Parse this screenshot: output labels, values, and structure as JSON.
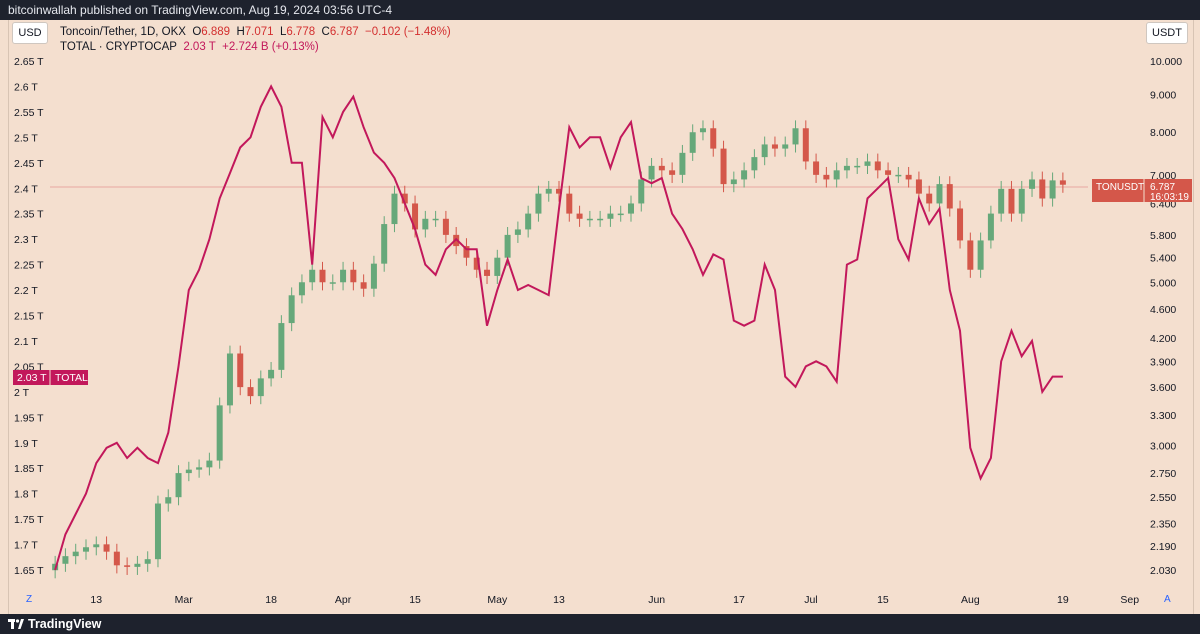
{
  "header": {
    "publish_line": "bitcoinwallah published on TradingView.com, Aug 19, 2024 03:56 UTC-4"
  },
  "footer": {
    "brand": "TradingView",
    "logo_icon": "tradingview-logo-icon"
  },
  "left_axis": {
    "currency_button": "USD",
    "ticks": [
      "2.65 T",
      "2.6 T",
      "2.55 T",
      "2.5 T",
      "2.45 T",
      "2.4 T",
      "2.35 T",
      "2.3 T",
      "2.25 T",
      "2.2 T",
      "2.15 T",
      "2.1 T",
      "2.05 T",
      "2 T",
      "1.95 T",
      "1.9 T",
      "1.85 T",
      "1.8 T",
      "1.75 T",
      "1.7 T",
      "1.65 T"
    ],
    "scale_button": "Z"
  },
  "right_axis": {
    "currency_button": "USDT",
    "ticks": [
      "10.000",
      "9.000",
      "8.000",
      "7.000",
      "6.400",
      "5.800",
      "5.400",
      "5.000",
      "4.600",
      "4.200",
      "3.900",
      "3.600",
      "3.300",
      "3.000",
      "2.750",
      "2.550",
      "2.350",
      "2.190",
      "2.030"
    ],
    "scale_button": "A"
  },
  "legend": {
    "symbol": "Toncoin/Tether, 1D, OKX",
    "o_label": "O",
    "o": "6.889",
    "h_label": "H",
    "h": "7.071",
    "l_label": "L",
    "l": "6.778",
    "c_label": "C",
    "c": "6.787",
    "change": "−0.102 (−1.48%)",
    "total_name": "TOTAL · CRYPTOCAP",
    "total_value": "2.03 T",
    "total_change": "+2.724 B (+0.13%)"
  },
  "price_labels": {
    "ton_symbol": "TONUSDT",
    "ton_price": "6.787",
    "ton_countdown": "16:03:19",
    "total_value": "2.03 T",
    "total_name": "TOTAL"
  },
  "colors": {
    "up": "#66a87a",
    "down": "#d4574a",
    "total_line": "#c2185b",
    "background": "#f4dfcf"
  },
  "chart_data": {
    "type": "line",
    "x_ticks": [
      "13",
      "Mar",
      "18",
      "Apr",
      "15",
      "May",
      "13",
      "Jun",
      "17",
      "Jul",
      "15",
      "Aug",
      "19",
      "Sep"
    ],
    "series": [
      {
        "name": "TOTAL · CRYPTOCAP",
        "scale": "left",
        "unit": "T",
        "dates": [
          "2024-02-05",
          "2024-02-07",
          "2024-02-09",
          "2024-02-11",
          "2024-02-13",
          "2024-02-15",
          "2024-02-17",
          "2024-02-19",
          "2024-02-21",
          "2024-02-23",
          "2024-02-25",
          "2024-02-27",
          "2024-02-29",
          "2024-03-02",
          "2024-03-04",
          "2024-03-06",
          "2024-03-08",
          "2024-03-10",
          "2024-03-12",
          "2024-03-14",
          "2024-03-16",
          "2024-03-18",
          "2024-03-20",
          "2024-03-22",
          "2024-03-24",
          "2024-03-26",
          "2024-03-28",
          "2024-03-30",
          "2024-04-01",
          "2024-04-03",
          "2024-04-05",
          "2024-04-07",
          "2024-04-09",
          "2024-04-11",
          "2024-04-13",
          "2024-04-15",
          "2024-04-17",
          "2024-04-19",
          "2024-04-21",
          "2024-04-23",
          "2024-04-25",
          "2024-04-27",
          "2024-04-29",
          "2024-05-01",
          "2024-05-03",
          "2024-05-05",
          "2024-05-07",
          "2024-05-09",
          "2024-05-11",
          "2024-05-13",
          "2024-05-15",
          "2024-05-17",
          "2024-05-19",
          "2024-05-21",
          "2024-05-23",
          "2024-05-25",
          "2024-05-27",
          "2024-05-29",
          "2024-05-31",
          "2024-06-02",
          "2024-06-04",
          "2024-06-06",
          "2024-06-08",
          "2024-06-10",
          "2024-06-12",
          "2024-06-14",
          "2024-06-16",
          "2024-06-18",
          "2024-06-20",
          "2024-06-22",
          "2024-06-24",
          "2024-06-26",
          "2024-06-28",
          "2024-06-30",
          "2024-07-02",
          "2024-07-04",
          "2024-07-06",
          "2024-07-08",
          "2024-07-10",
          "2024-07-12",
          "2024-07-14",
          "2024-07-16",
          "2024-07-18",
          "2024-07-20",
          "2024-07-22",
          "2024-07-24",
          "2024-07-26",
          "2024-07-28",
          "2024-07-30",
          "2024-08-01",
          "2024-08-03",
          "2024-08-05",
          "2024-08-07",
          "2024-08-09",
          "2024-08-11",
          "2024-08-13",
          "2024-08-15",
          "2024-08-17",
          "2024-08-19"
        ],
        "values": [
          1.65,
          1.72,
          1.76,
          1.8,
          1.86,
          1.89,
          1.9,
          1.87,
          1.89,
          1.87,
          1.86,
          1.92,
          2.05,
          2.2,
          2.24,
          2.3,
          2.38,
          2.43,
          2.48,
          2.5,
          2.56,
          2.6,
          2.56,
          2.45,
          2.45,
          2.25,
          2.54,
          2.5,
          2.55,
          2.58,
          2.52,
          2.47,
          2.45,
          2.42,
          2.37,
          2.32,
          2.25,
          2.23,
          2.28,
          2.3,
          2.28,
          2.28,
          2.13,
          2.2,
          2.26,
          2.2,
          2.21,
          2.2,
          2.19,
          2.36,
          2.52,
          2.48,
          2.5,
          2.5,
          2.44,
          2.5,
          2.53,
          2.42,
          2.41,
          2.42,
          2.35,
          2.32,
          2.28,
          2.23,
          2.27,
          2.26,
          2.14,
          2.13,
          2.14,
          2.25,
          2.2,
          2.03,
          2.01,
          2.05,
          2.06,
          2.05,
          2.02,
          2.25,
          2.26,
          2.38,
          2.4,
          2.42,
          2.3,
          2.26,
          2.38,
          2.33,
          2.36,
          2.2,
          2.12,
          1.89,
          1.83,
          1.87,
          2.06,
          2.12,
          2.07,
          2.1,
          2.0,
          2.03,
          2.03
        ]
      },
      {
        "name": "Toncoin/Tether, 1D, OKX",
        "scale": "right",
        "unit": "USDT",
        "type": "candlestick",
        "dates": [
          "2024-02-05",
          "2024-02-07",
          "2024-02-09",
          "2024-02-11",
          "2024-02-13",
          "2024-02-15",
          "2024-02-17",
          "2024-02-19",
          "2024-02-21",
          "2024-02-23",
          "2024-02-25",
          "2024-02-27",
          "2024-02-29",
          "2024-03-02",
          "2024-03-04",
          "2024-03-06",
          "2024-03-08",
          "2024-03-10",
          "2024-03-12",
          "2024-03-14",
          "2024-03-16",
          "2024-03-18",
          "2024-03-20",
          "2024-03-22",
          "2024-03-24",
          "2024-03-26",
          "2024-03-28",
          "2024-03-30",
          "2024-04-01",
          "2024-04-03",
          "2024-04-05",
          "2024-04-07",
          "2024-04-09",
          "2024-04-11",
          "2024-04-13",
          "2024-04-15",
          "2024-04-17",
          "2024-04-19",
          "2024-04-21",
          "2024-04-23",
          "2024-04-25",
          "2024-04-27",
          "2024-04-29",
          "2024-05-01",
          "2024-05-03",
          "2024-05-05",
          "2024-05-07",
          "2024-05-09",
          "2024-05-11",
          "2024-05-13",
          "2024-05-15",
          "2024-05-17",
          "2024-05-19",
          "2024-05-21",
          "2024-05-23",
          "2024-05-25",
          "2024-05-27",
          "2024-05-29",
          "2024-05-31",
          "2024-06-02",
          "2024-06-04",
          "2024-06-06",
          "2024-06-08",
          "2024-06-10",
          "2024-06-12",
          "2024-06-14",
          "2024-06-16",
          "2024-06-18",
          "2024-06-20",
          "2024-06-22",
          "2024-06-24",
          "2024-06-26",
          "2024-06-28",
          "2024-06-30",
          "2024-07-02",
          "2024-07-04",
          "2024-07-06",
          "2024-07-08",
          "2024-07-10",
          "2024-07-12",
          "2024-07-14",
          "2024-07-16",
          "2024-07-18",
          "2024-07-20",
          "2024-07-22",
          "2024-07-24",
          "2024-07-26",
          "2024-07-28",
          "2024-07-30",
          "2024-08-01",
          "2024-08-03",
          "2024-08-05",
          "2024-08-07",
          "2024-08-09",
          "2024-08-11",
          "2024-08-13",
          "2024-08-15",
          "2024-08-17",
          "2024-08-19"
        ],
        "close": [
          2.07,
          2.12,
          2.15,
          2.18,
          2.2,
          2.15,
          2.06,
          2.05,
          2.07,
          2.1,
          2.5,
          2.55,
          2.75,
          2.78,
          2.8,
          2.86,
          3.4,
          4.0,
          3.6,
          3.5,
          3.7,
          3.8,
          4.4,
          4.8,
          5.0,
          5.2,
          5.0,
          5.0,
          5.2,
          5.0,
          4.9,
          5.3,
          6.0,
          6.6,
          6.4,
          5.9,
          6.1,
          6.1,
          5.8,
          5.6,
          5.4,
          5.2,
          5.1,
          5.4,
          5.8,
          5.9,
          6.2,
          6.6,
          6.7,
          6.6,
          6.2,
          6.1,
          6.1,
          6.1,
          6.2,
          6.2,
          6.4,
          6.9,
          7.2,
          7.1,
          7.0,
          7.5,
          8.0,
          8.1,
          7.6,
          6.8,
          6.9,
          7.1,
          7.4,
          7.7,
          7.6,
          7.7,
          8.1,
          7.3,
          7.0,
          6.9,
          7.1,
          7.2,
          7.2,
          7.3,
          7.1,
          7.0,
          7.0,
          6.9,
          6.6,
          6.4,
          6.8,
          6.3,
          5.7,
          5.2,
          5.7,
          6.2,
          6.7,
          6.2,
          6.7,
          6.9,
          6.5,
          6.88,
          6.787
        ]
      }
    ],
    "left_ylim": [
      1.65,
      2.65
    ],
    "right_ylim": [
      2.03,
      10.0
    ],
    "right_log_scale": true,
    "grid": false,
    "legend_position": "top-left"
  }
}
